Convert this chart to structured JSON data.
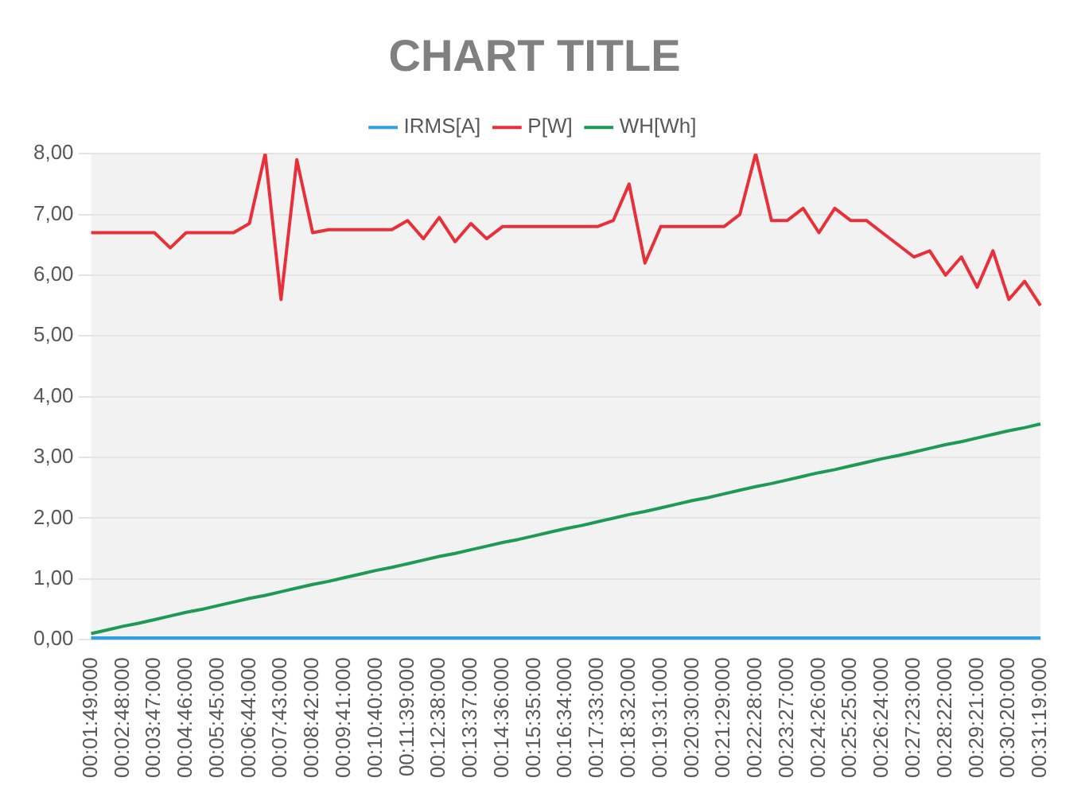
{
  "chart_data": {
    "type": "line",
    "title": "CHART TITLE",
    "categories": [
      "00:01:49:000",
      null,
      "00:02:48:000",
      null,
      "00:03:47:000",
      null,
      "00:04:46:000",
      null,
      "00:05:45:000",
      null,
      "00:06:44:000",
      null,
      "00:07:43:000",
      null,
      "00:08:42:000",
      null,
      "00:09:41:000",
      null,
      "00:10:40:000",
      null,
      "00:11:39:000",
      null,
      "00:12:38:000",
      null,
      "00:13:37:000",
      null,
      "00:14:36:000",
      null,
      "00:15:35:000",
      null,
      "00:16:34:000",
      null,
      "00:17:33:000",
      null,
      "00:18:32:000",
      null,
      "00:19:31:000",
      null,
      "00:20:30:000",
      null,
      "00:21:29:000",
      null,
      "00:22:28:000",
      null,
      "00:23:27:000",
      null,
      "00:24:26:000",
      null,
      "00:25:25:000",
      null,
      "00:26:24:000",
      null,
      "00:27:23:000",
      null,
      "00:28:22:000",
      null,
      "00:29:21:000",
      null,
      "00:30:20:000",
      null,
      "00:31:19:000"
    ],
    "series": [
      {
        "name": "IRMS[A]",
        "color": "#2e9fe0",
        "values": [
          0.03,
          0.03,
          0.03,
          0.03,
          0.03,
          0.03,
          0.03,
          0.03,
          0.03,
          0.03,
          0.03,
          0.03,
          0.03,
          0.03,
          0.03,
          0.03,
          0.03,
          0.03,
          0.03,
          0.03,
          0.03,
          0.03,
          0.03,
          0.03,
          0.03,
          0.03,
          0.03,
          0.03,
          0.03,
          0.03,
          0.03,
          0.03,
          0.03,
          0.03,
          0.03,
          0.03,
          0.03,
          0.03,
          0.03,
          0.03,
          0.03,
          0.03,
          0.03,
          0.03,
          0.03,
          0.03,
          0.03,
          0.03,
          0.03,
          0.03,
          0.03,
          0.03,
          0.03,
          0.03,
          0.03,
          0.03,
          0.03,
          0.03,
          0.03,
          0.03,
          0.03
        ]
      },
      {
        "name": "P[W]",
        "color": "#e8303a",
        "values": [
          6.7,
          6.7,
          6.7,
          6.7,
          6.7,
          6.45,
          6.7,
          6.7,
          6.7,
          6.7,
          6.85,
          8.0,
          5.6,
          7.9,
          6.7,
          6.75,
          6.75,
          6.75,
          6.75,
          6.75,
          6.9,
          6.6,
          6.95,
          6.55,
          6.85,
          6.6,
          6.8,
          6.8,
          6.8,
          6.8,
          6.8,
          6.8,
          6.8,
          6.9,
          7.5,
          6.2,
          6.8,
          6.8,
          6.8,
          6.8,
          6.8,
          7.0,
          8.0,
          6.9,
          6.9,
          7.1,
          6.7,
          7.1,
          6.9,
          6.9,
          6.7,
          6.5,
          6.3,
          6.4,
          6.0,
          6.3,
          5.8,
          6.4,
          5.6,
          5.9,
          5.5
        ]
      },
      {
        "name": "WH[Wh]",
        "color": "#1e9a55",
        "values": [
          0.1,
          0.16,
          0.22,
          0.27,
          0.33,
          0.39,
          0.45,
          0.5,
          0.56,
          0.62,
          0.68,
          0.73,
          0.79,
          0.85,
          0.91,
          0.96,
          1.02,
          1.08,
          1.14,
          1.19,
          1.25,
          1.31,
          1.37,
          1.42,
          1.48,
          1.54,
          1.6,
          1.65,
          1.71,
          1.77,
          1.83,
          1.88,
          1.94,
          2.0,
          2.06,
          2.11,
          2.17,
          2.23,
          2.29,
          2.34,
          2.4,
          2.46,
          2.52,
          2.57,
          2.63,
          2.69,
          2.75,
          2.8,
          2.86,
          2.92,
          2.98,
          3.03,
          3.09,
          3.15,
          3.21,
          3.26,
          3.32,
          3.38,
          3.44,
          3.49,
          3.55
        ]
      }
    ],
    "ylim": [
      0,
      8
    ],
    "yticks": [
      {
        "value": 0,
        "label": "0,00"
      },
      {
        "value": 1,
        "label": "1,00"
      },
      {
        "value": 2,
        "label": "2,00"
      },
      {
        "value": 3,
        "label": "3,00"
      },
      {
        "value": 4,
        "label": "4,00"
      },
      {
        "value": 5,
        "label": "5,00"
      },
      {
        "value": 6,
        "label": "6,00"
      },
      {
        "value": 7,
        "label": "7,00"
      },
      {
        "value": 8,
        "label": "8,00"
      }
    ],
    "grid": "y",
    "legend": "top",
    "marker": "none",
    "line_style": "solid"
  }
}
